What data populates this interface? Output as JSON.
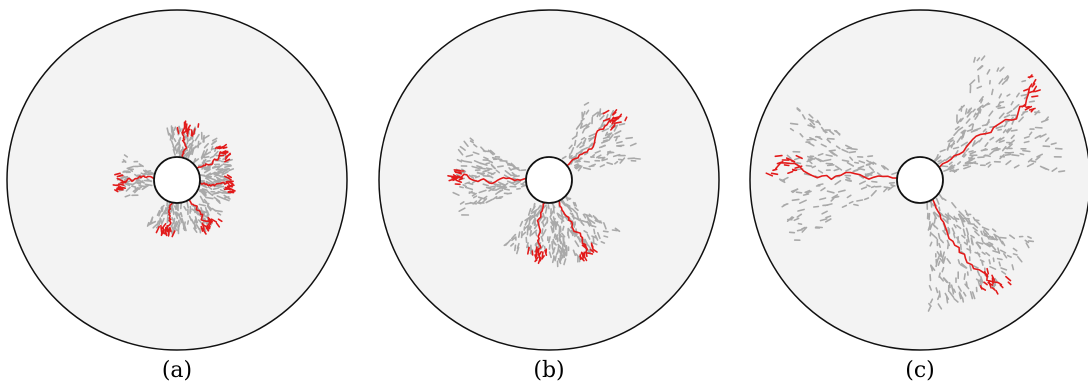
{
  "panels": [
    {
      "caption": "(a)",
      "main_cracks": [
        {
          "angle_deg": -78,
          "length": 0.2
        },
        {
          "angle_deg": -28,
          "length": 0.22
        },
        {
          "angle_deg": 8,
          "length": 0.2
        },
        {
          "angle_deg": 55,
          "length": 0.22
        },
        {
          "angle_deg": 100,
          "length": 0.2
        },
        {
          "angle_deg": 182,
          "length": 0.23
        }
      ],
      "spread": 0.24
    },
    {
      "caption": "(b)",
      "main_cracks": [
        {
          "angle_deg": -38,
          "length": 0.48
        },
        {
          "angle_deg": 62,
          "length": 0.43
        },
        {
          "angle_deg": 100,
          "length": 0.38
        },
        {
          "angle_deg": 183,
          "length": 0.5
        }
      ],
      "spread": 0.42
    },
    {
      "caption": "(c)",
      "main_cracks": [
        {
          "angle_deg": -35,
          "length": 0.85
        },
        {
          "angle_deg": 57,
          "length": 0.75
        },
        {
          "angle_deg": 183,
          "length": 0.83
        }
      ],
      "spread": 0.6
    }
  ],
  "colors": {
    "background_disk": "#f3f3f3",
    "outline": "#111111",
    "crack_main": "#e21a1a",
    "crack_minor": "#a9a9a9"
  }
}
